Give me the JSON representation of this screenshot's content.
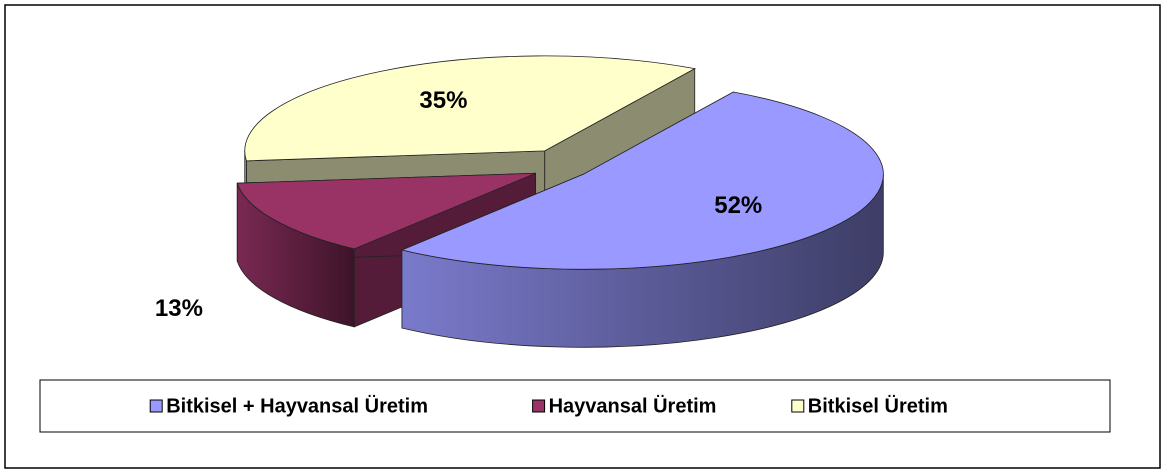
{
  "chart_data": {
    "type": "pie",
    "categories": [
      "Bitkisel + Hayvansal Üretim",
      "Hayvansal Üretim",
      "Bitkisel Üretim"
    ],
    "values": [
      52,
      13,
      35
    ],
    "value_labels": [
      "52%",
      "13%",
      "35%"
    ],
    "colors": [
      "#9999ff",
      "#993366",
      "#ffffcc"
    ],
    "legend": "bottom"
  }
}
